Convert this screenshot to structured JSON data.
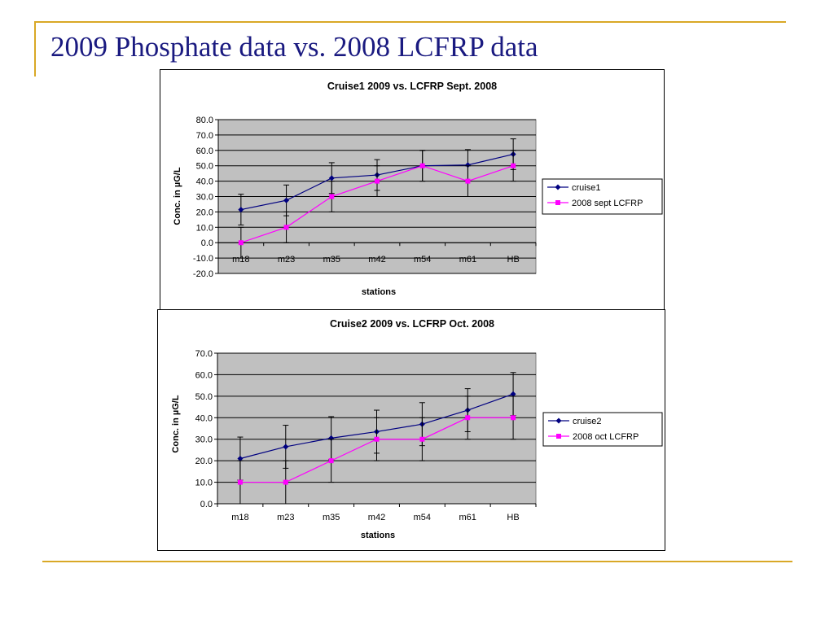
{
  "slide": {
    "title": "2009 Phosphate data vs. 2008 LCFRP data"
  },
  "chart_data": [
    {
      "type": "line",
      "title": "Cruise1 2009 vs. LCFRP Sept. 2008",
      "xlabel": "stations",
      "ylabel": "Conc. in µG/L",
      "categories": [
        "m18",
        "m23",
        "m35",
        "m42",
        "m54",
        "m61",
        "HB"
      ],
      "ylim": [
        -20,
        80
      ],
      "yticks": [
        "-20.0",
        "-10.0",
        "0.0",
        "10.0",
        "20.0",
        "30.0",
        "40.0",
        "50.0",
        "60.0",
        "70.0",
        "80.0"
      ],
      "grid": true,
      "legend_position": "right",
      "series": [
        {
          "name": "cruise1",
          "color": "#000080",
          "marker": "diamond",
          "values": [
            21.5,
            27.5,
            42,
            44,
            50,
            50.5,
            57.5
          ],
          "error_low": [
            11.5,
            17.5,
            32,
            34,
            40,
            40.5,
            47.5
          ],
          "error_high": [
            31.5,
            37.5,
            52,
            54,
            60,
            60.5,
            67.5
          ]
        },
        {
          "name": "2008 sept LCFRP",
          "color": "#ff00ff",
          "marker": "square",
          "values": [
            0,
            10,
            30,
            40,
            50,
            40,
            50
          ],
          "error_low": [
            -10,
            0,
            20,
            30,
            40,
            30,
            40
          ],
          "error_high": [
            10,
            20,
            40,
            50,
            60,
            50,
            60
          ]
        }
      ]
    },
    {
      "type": "line",
      "title": "Cruise2 2009 vs. LCFRP Oct. 2008",
      "xlabel": "stations",
      "ylabel": "Conc. in µG/L",
      "categories": [
        "m18",
        "m23",
        "m35",
        "m42",
        "m54",
        "m61",
        "HB"
      ],
      "ylim": [
        0,
        70
      ],
      "yticks": [
        "0.0",
        "10.0",
        "20.0",
        "30.0",
        "40.0",
        "50.0",
        "60.0",
        "70.0"
      ],
      "grid": true,
      "legend_position": "right",
      "series": [
        {
          "name": "cruise2",
          "color": "#000080",
          "marker": "diamond",
          "values": [
            21,
            26.5,
            30.5,
            33.5,
            37,
            43.5,
            51
          ],
          "error_low": [
            11,
            16.5,
            20.5,
            23.5,
            27,
            33.5,
            41
          ],
          "error_high": [
            31,
            36.5,
            40.5,
            43.5,
            47,
            53.5,
            61
          ]
        },
        {
          "name": "2008 oct LCFRP",
          "color": "#ff00ff",
          "marker": "square",
          "values": [
            10,
            10,
            20,
            30,
            30,
            40,
            40
          ],
          "error_low": [
            0,
            0,
            10,
            20,
            20,
            30,
            30
          ],
          "error_high": [
            20,
            20,
            30,
            40,
            40,
            50,
            50
          ]
        }
      ]
    }
  ]
}
